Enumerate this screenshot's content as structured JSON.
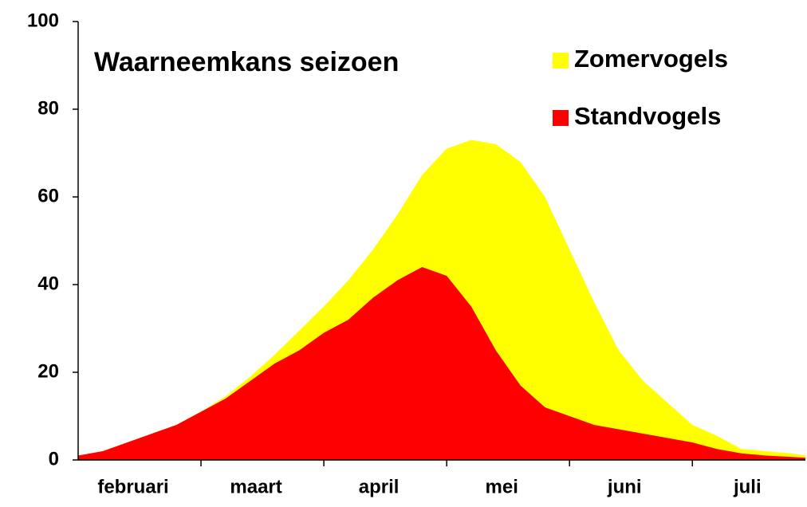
{
  "chart_data": {
    "type": "area",
    "title": "Waarneemkans seizoen",
    "categories": [
      "februari",
      "maart",
      "april",
      "mei",
      "juni",
      "juli"
    ],
    "x": [
      0,
      1,
      2,
      3,
      4,
      5,
      6,
      7,
      8,
      9,
      10,
      11,
      12,
      13,
      14,
      15,
      16,
      17,
      18,
      19,
      20,
      21,
      22,
      23,
      24,
      25,
      26,
      27,
      28,
      29,
      29.6
    ],
    "xlim": [
      0,
      29.6
    ],
    "series": [
      {
        "name": "Zomervogels",
        "color": "#ffff00",
        "values": [
          1,
          2,
          4,
          6,
          8,
          11,
          14.5,
          19,
          24,
          29.5,
          35,
          41,
          48,
          56,
          65,
          71,
          73,
          72,
          68,
          60,
          48,
          36,
          25,
          18,
          13,
          8,
          5.5,
          2.5,
          2,
          1.5,
          1
        ]
      },
      {
        "name": "Standvogels",
        "color": "#ff0000",
        "values": [
          1,
          2,
          4,
          6,
          8,
          11,
          14,
          18,
          22,
          25,
          29,
          32,
          37,
          41,
          44,
          42,
          35,
          25,
          17,
          12,
          10,
          8,
          7,
          6,
          5,
          4,
          2.5,
          1.5,
          1,
          0.7,
          0.5
        ]
      }
    ],
    "ylim": [
      0,
      100
    ],
    "yticks": [
      0,
      20,
      40,
      60,
      80,
      100
    ],
    "legend": "upper right",
    "grid": false
  }
}
